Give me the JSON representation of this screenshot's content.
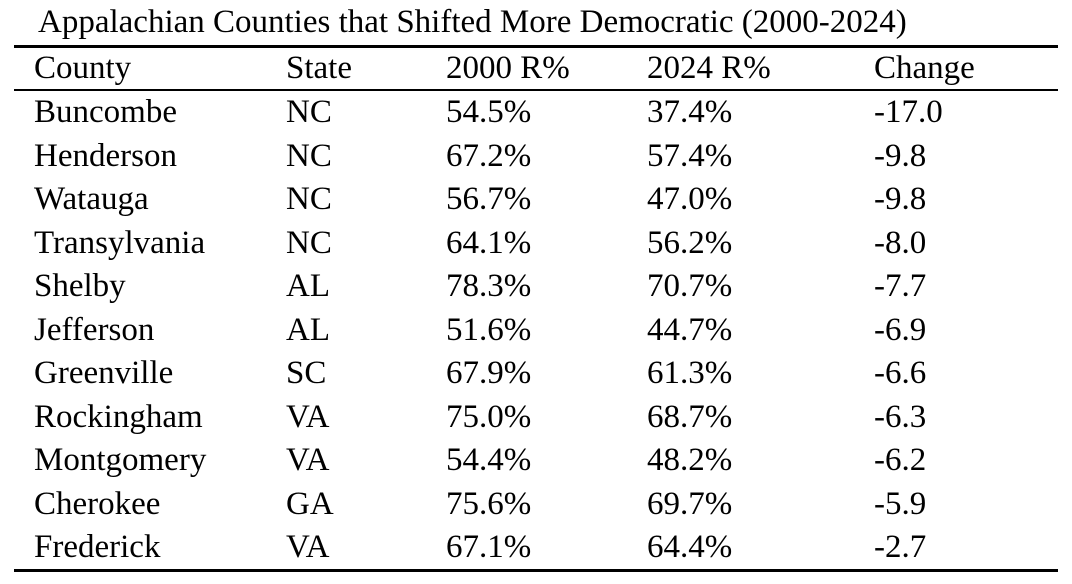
{
  "chart_data": {
    "type": "table",
    "title": "Appalachian Counties that Shifted More Democratic (2000-2024)",
    "columns": [
      "County",
      "State",
      "2000 R%",
      "2024 R%",
      "Change"
    ],
    "rows": [
      [
        "Buncombe",
        "NC",
        "54.5%",
        "37.4%",
        "-17.0"
      ],
      [
        "Henderson",
        "NC",
        "67.2%",
        "57.4%",
        "-9.8"
      ],
      [
        "Watauga",
        "NC",
        "56.7%",
        "47.0%",
        "-9.8"
      ],
      [
        "Transylvania",
        "NC",
        "64.1%",
        "56.2%",
        "-8.0"
      ],
      [
        "Shelby",
        "AL",
        "78.3%",
        "70.7%",
        "-7.7"
      ],
      [
        "Jefferson",
        "AL",
        "51.6%",
        "44.7%",
        "-6.9"
      ],
      [
        "Greenville",
        "SC",
        "67.9%",
        "61.3%",
        "-6.6"
      ],
      [
        "Rockingham",
        "VA",
        "75.0%",
        "68.7%",
        "-6.3"
      ],
      [
        "Montgomery",
        "VA",
        "54.4%",
        "48.2%",
        "-6.2"
      ],
      [
        "Cherokee",
        "GA",
        "75.6%",
        "69.7%",
        "-5.9"
      ],
      [
        "Frederick",
        "VA",
        "67.1%",
        "64.4%",
        "-2.7"
      ]
    ],
    "layout": {
      "grid": false,
      "rules": [
        "below-title",
        "below-header",
        "table-bottom"
      ]
    }
  },
  "colors": {
    "text": "#000000",
    "background": "#ffffff",
    "rule": "#000000"
  }
}
